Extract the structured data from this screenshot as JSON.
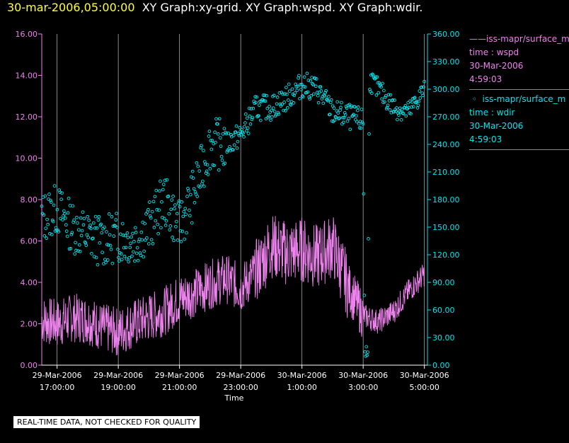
{
  "title": {
    "timestamp": "30-mar-2006,05:00:00",
    "text": "XY Graph:xy-grid.  XY Graph:wspd.  XY Graph:wdir."
  },
  "legend": {
    "series1": {
      "name": "iss-mapr/surface_m",
      "var": "time : wspd",
      "date": "30-Mar-2006",
      "time": "4:59:03"
    },
    "series2": {
      "name": "iss-mapr/surface_m",
      "var": "time : wdir",
      "date": "30-Mar-2006",
      "time": "4:59:03"
    }
  },
  "disclaimer": "REAL-TIME DATA, NOT CHECKED FOR QUALITY",
  "colors": {
    "wspd": "#ee82ee",
    "wdir": "#00e5ee",
    "grid": "#aaaaaa",
    "background": "#000000"
  },
  "chart_data": {
    "type": "line",
    "xlabel": "Time",
    "x_range_hours": [
      16.5,
      29.1
    ],
    "x_ticks": [
      {
        "hour": 17,
        "date": "29-Mar-2006",
        "time": "17:00:00"
      },
      {
        "hour": 19,
        "date": "29-Mar-2006",
        "time": "19:00:00"
      },
      {
        "hour": 21,
        "date": "29-Mar-2006",
        "time": "21:00:00"
      },
      {
        "hour": 23,
        "date": "29-Mar-2006",
        "time": "23:00:00"
      },
      {
        "hour": 25,
        "date": "30-Mar-2006",
        "time": "1:00:00"
      },
      {
        "hour": 27,
        "date": "30-Mar-2006",
        "time": "3:00:00"
      },
      {
        "hour": 29,
        "date": "30-Mar-2006",
        "time": "5:00:00"
      }
    ],
    "y_left": {
      "label": "wspd",
      "range": [
        0,
        16
      ],
      "ticks": [
        "0.00",
        "2.00",
        "4.00",
        "6.00",
        "8.00",
        "10.00",
        "12.00",
        "14.00",
        "16.00"
      ]
    },
    "y_right": {
      "label": "wdir",
      "range": [
        0,
        360
      ],
      "ticks": [
        "0.00",
        "30.00",
        "60.00",
        "90.00",
        "120.00",
        "150.00",
        "180.00",
        "210.00",
        "240.00",
        "270.00",
        "300.00",
        "330.00",
        "360.00"
      ]
    },
    "series": [
      {
        "name": "wspd",
        "style": "line",
        "x": [
          16.5,
          17.0,
          17.5,
          18.0,
          18.5,
          19.0,
          19.5,
          20.0,
          20.5,
          21.0,
          21.5,
          22.0,
          22.5,
          23.0,
          23.5,
          24.0,
          24.5,
          25.0,
          25.5,
          26.0,
          26.5,
          27.0,
          27.5,
          28.0,
          28.5,
          29.0
        ],
        "values": [
          2.2,
          2.0,
          2.3,
          2.2,
          1.8,
          1.6,
          2.0,
          2.3,
          2.6,
          3.2,
          3.5,
          3.9,
          4.2,
          3.7,
          4.5,
          5.8,
          5.4,
          5.6,
          5.2,
          5.8,
          3.8,
          2.4,
          2.1,
          2.6,
          3.6,
          4.4
        ]
      },
      {
        "name": "wdir",
        "style": "markers",
        "x": [
          16.5,
          17.0,
          17.5,
          18.0,
          18.5,
          19.0,
          19.5,
          20.0,
          20.5,
          21.0,
          21.5,
          22.0,
          22.5,
          23.0,
          23.5,
          24.0,
          24.5,
          25.0,
          25.5,
          26.0,
          26.5,
          27.0,
          27.05,
          27.15,
          27.2,
          27.5,
          28.0,
          28.5,
          29.0
        ],
        "values": [
          160,
          170,
          150,
          140,
          135,
          140,
          135,
          150,
          180,
          150,
          190,
          240,
          240,
          250,
          280,
          280,
          290,
          305,
          300,
          275,
          270,
          265,
          20,
          10,
          310,
          300,
          280,
          275,
          300
        ]
      }
    ]
  }
}
